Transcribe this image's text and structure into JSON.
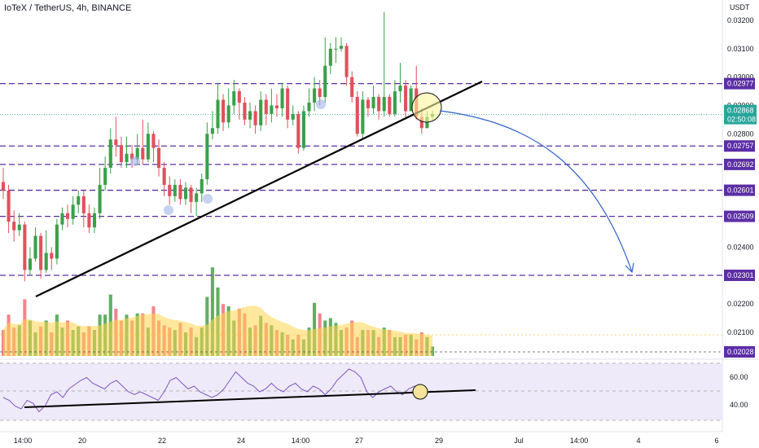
{
  "header": {
    "title": "IoTeX / TetherUS, 4h, BINANCE"
  },
  "colors": {
    "up": "#26a69a",
    "down": "#ef5350",
    "upBody": "#3aa04a",
    "downBody": "#e0515c",
    "level": "#5b2ea6",
    "trend": "#000000",
    "arrow": "#2f62c8",
    "rsiBg": "#efeaf9",
    "rsiLine": "#7e57c2",
    "volMa": "#ffd54f"
  },
  "chart_data": {
    "type": "candlestick",
    "title": "IoTeX / TetherUS, 4h, BINANCE",
    "price_axis": {
      "unit_label": "USDT",
      "ticks": [
        "0.03200",
        "0.03100",
        "0.03000",
        "0.02900",
        "0.02800",
        "0.02400",
        "0.02200",
        "0.02100"
      ],
      "range": [
        0.0201,
        0.0326
      ]
    },
    "price_levels": [
      {
        "label": "0.02977",
        "value": 0.02977
      },
      {
        "label": "0.02757",
        "value": 0.02757
      },
      {
        "label": "0.02692",
        "value": 0.02692
      },
      {
        "label": "0.02601",
        "value": 0.02601
      },
      {
        "label": "0.02509",
        "value": 0.02509
      },
      {
        "label": "0.02301",
        "value": 0.02301
      }
    ],
    "last_price": {
      "label": "0.02868",
      "timer": "02:50:08",
      "value": 0.02868
    },
    "volume_label": {
      "label": "0.02028",
      "value": 0.02028
    },
    "time_axis": [
      "14:00",
      "20",
      "22",
      "24",
      "14:00",
      "27",
      "29",
      "Jul",
      "14:00",
      "4",
      "6"
    ],
    "candles": [
      [
        0.0263,
        0.026,
        0.0268,
        0.0257
      ],
      [
        0.026,
        0.0249,
        0.0262,
        0.0245
      ],
      [
        0.0249,
        0.0246,
        0.0253,
        0.0242
      ],
      [
        0.0246,
        0.0248,
        0.0252,
        0.0244
      ],
      [
        0.0248,
        0.0232,
        0.0249,
        0.0228
      ],
      [
        0.0232,
        0.0236,
        0.024,
        0.023
      ],
      [
        0.0236,
        0.0244,
        0.0247,
        0.0235
      ],
      [
        0.0244,
        0.0232,
        0.0245,
        0.0229
      ],
      [
        0.0232,
        0.0238,
        0.0246,
        0.0231
      ],
      [
        0.0238,
        0.0236,
        0.024,
        0.0232
      ],
      [
        0.0236,
        0.0248,
        0.025,
        0.0234
      ],
      [
        0.0248,
        0.0252,
        0.0254,
        0.0246
      ],
      [
        0.0252,
        0.025,
        0.0255,
        0.0247
      ],
      [
        0.025,
        0.0255,
        0.0258,
        0.0248
      ],
      [
        0.0255,
        0.0258,
        0.026,
        0.0252
      ],
      [
        0.0258,
        0.0252,
        0.026,
        0.0247
      ],
      [
        0.0252,
        0.0247,
        0.0255,
        0.0245
      ],
      [
        0.0247,
        0.0252,
        0.0254,
        0.0245
      ],
      [
        0.0252,
        0.0262,
        0.0268,
        0.025
      ],
      [
        0.0262,
        0.0268,
        0.0272,
        0.026
      ],
      [
        0.0268,
        0.0278,
        0.0282,
        0.0266
      ],
      [
        0.0278,
        0.0276,
        0.0286,
        0.0272
      ],
      [
        0.0276,
        0.027,
        0.0279,
        0.0268
      ],
      [
        0.027,
        0.0273,
        0.0279,
        0.0268
      ],
      [
        0.0273,
        0.0271,
        0.0276,
        0.0268
      ],
      [
        0.0271,
        0.0275,
        0.028,
        0.0269
      ],
      [
        0.0275,
        0.0271,
        0.0285,
        0.0269
      ],
      [
        0.0271,
        0.028,
        0.0284,
        0.027
      ],
      [
        0.028,
        0.0275,
        0.0281,
        0.027
      ],
      [
        0.0275,
        0.0268,
        0.0278,
        0.0265
      ],
      [
        0.0268,
        0.0262,
        0.027,
        0.0258
      ],
      [
        0.0262,
        0.0258,
        0.0265,
        0.0255
      ],
      [
        0.0258,
        0.0262,
        0.0264,
        0.0256
      ],
      [
        0.0262,
        0.0257,
        0.0264,
        0.0255
      ],
      [
        0.0257,
        0.0261,
        0.0263,
        0.0255
      ],
      [
        0.0261,
        0.0256,
        0.0262,
        0.0252
      ],
      [
        0.0256,
        0.0259,
        0.0261,
        0.0251
      ],
      [
        0.0259,
        0.0264,
        0.0266,
        0.0256
      ],
      [
        0.0264,
        0.028,
        0.0284,
        0.0262
      ],
      [
        0.028,
        0.0282,
        0.0288,
        0.0278
      ],
      [
        0.0282,
        0.0292,
        0.0298,
        0.028
      ],
      [
        0.0292,
        0.0284,
        0.0294,
        0.0281
      ],
      [
        0.0284,
        0.029,
        0.0296,
        0.0282
      ],
      [
        0.029,
        0.0295,
        0.0299,
        0.0287
      ],
      [
        0.0295,
        0.0291,
        0.0296,
        0.0285
      ],
      [
        0.0291,
        0.0285,
        0.0293,
        0.0283
      ],
      [
        0.0285,
        0.0288,
        0.0291,
        0.0282
      ],
      [
        0.0288,
        0.0283,
        0.029,
        0.028
      ],
      [
        0.0283,
        0.0292,
        0.0295,
        0.0281
      ],
      [
        0.0292,
        0.0287,
        0.0294,
        0.0283
      ],
      [
        0.0287,
        0.029,
        0.0296,
        0.0284
      ],
      [
        0.029,
        0.0289,
        0.0294,
        0.0286
      ],
      [
        0.0289,
        0.0296,
        0.0298,
        0.0286
      ],
      [
        0.0296,
        0.0285,
        0.0297,
        0.0282
      ],
      [
        0.0285,
        0.0287,
        0.029,
        0.0283
      ],
      [
        0.0287,
        0.0275,
        0.0288,
        0.0273
      ],
      [
        0.0275,
        0.0288,
        0.029,
        0.0274
      ],
      [
        0.0288,
        0.0291,
        0.0296,
        0.0286
      ],
      [
        0.0291,
        0.0296,
        0.03,
        0.0288
      ],
      [
        0.0296,
        0.0293,
        0.0299,
        0.029
      ],
      [
        0.0293,
        0.0304,
        0.0314,
        0.0291
      ],
      [
        0.0304,
        0.031,
        0.0312,
        0.0301
      ],
      [
        0.031,
        0.031,
        0.0314,
        0.0305
      ],
      [
        0.031,
        0.0311,
        0.0314,
        0.0309
      ],
      [
        0.0311,
        0.03,
        0.0312,
        0.0297
      ],
      [
        0.03,
        0.0293,
        0.0302,
        0.0291
      ],
      [
        0.0293,
        0.028,
        0.0295,
        0.0279
      ],
      [
        0.028,
        0.0292,
        0.0295,
        0.0278
      ],
      [
        0.0292,
        0.0289,
        0.0293,
        0.0286
      ],
      [
        0.0289,
        0.0293,
        0.0297,
        0.0287
      ],
      [
        0.0293,
        0.0288,
        0.0294,
        0.0285
      ],
      [
        0.0288,
        0.0293,
        0.0323,
        0.0286
      ],
      [
        0.0293,
        0.0287,
        0.0294,
        0.0286
      ],
      [
        0.0287,
        0.0295,
        0.0299,
        0.0286
      ],
      [
        0.0295,
        0.0297,
        0.0305,
        0.0291
      ],
      [
        0.0297,
        0.0288,
        0.0299,
        0.0285
      ],
      [
        0.0288,
        0.0296,
        0.0297,
        0.0288
      ],
      [
        0.0296,
        0.0286,
        0.0304,
        0.0285
      ],
      [
        0.0286,
        0.0282,
        0.0289,
        0.028
      ],
      [
        0.0282,
        0.0286,
        0.0288,
        0.0282
      ],
      [
        0.0286,
        0.0287,
        0.0288,
        0.0285
      ]
    ],
    "volume": [
      22,
      35,
      24,
      26,
      48,
      30,
      20,
      25,
      30,
      20,
      35,
      24,
      30,
      22,
      25,
      20,
      25,
      22,
      35,
      35,
      52,
      40,
      30,
      35,
      30,
      36,
      36,
      24,
      42,
      30,
      26,
      24,
      22,
      28,
      20,
      24,
      16,
      24,
      50,
      75,
      58,
      44,
      42,
      30,
      40,
      36,
      24,
      26,
      34,
      28,
      26,
      22,
      20,
      18,
      14,
      18,
      14,
      24,
      45,
      36,
      30,
      32,
      28,
      22,
      24,
      30,
      16,
      22,
      22,
      22,
      16,
      24,
      22,
      16,
      16,
      18,
      18,
      14,
      20,
      16,
      8
    ],
    "rsi_axis": {
      "ticks": [
        "60.00",
        "40.00"
      ]
    }
  }
}
